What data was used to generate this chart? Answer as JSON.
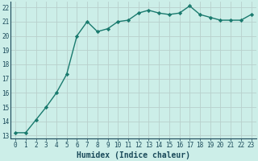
{
  "x": [
    0,
    1,
    2,
    3,
    4,
    5,
    6,
    7,
    8,
    9,
    10,
    11,
    12,
    13,
    14,
    15,
    16,
    17,
    18,
    19,
    20,
    21,
    22,
    23
  ],
  "y": [
    13.2,
    13.2,
    14.1,
    15.0,
    16.0,
    17.3,
    20.0,
    21.0,
    20.3,
    20.5,
    21.0,
    21.1,
    21.6,
    21.8,
    21.6,
    21.5,
    21.6,
    22.1,
    21.5,
    21.3,
    21.1,
    21.1,
    21.1,
    21.5
  ],
  "line_color": "#1a7a6e",
  "marker": "D",
  "marker_size": 2.2,
  "bg_color": "#cceee8",
  "grid_color": "#b8d0cc",
  "xlabel": "Humidex (Indice chaleur)",
  "ylim": [
    12.8,
    22.4
  ],
  "xlim": [
    -0.5,
    23.5
  ],
  "yticks": [
    13,
    14,
    15,
    16,
    17,
    18,
    19,
    20,
    21,
    22
  ],
  "xticks": [
    0,
    1,
    2,
    3,
    4,
    5,
    6,
    7,
    8,
    9,
    10,
    11,
    12,
    13,
    14,
    15,
    16,
    17,
    18,
    19,
    20,
    21,
    22,
    23
  ],
  "tick_label_color": "#1a4a5a",
  "tick_fontsize": 5.5,
  "xlabel_fontsize": 7.0,
  "line_width": 1.0
}
